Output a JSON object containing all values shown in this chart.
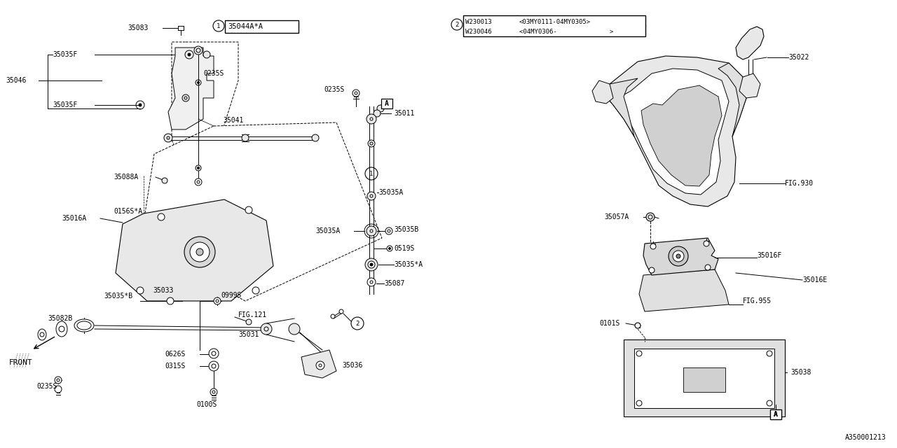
{
  "bg_color": "#ffffff",
  "line_color": "#000000",
  "text_color": "#000000",
  "ref_code": "A350001213",
  "part1_label": "35044A*A",
  "part2_row1": "W230013",
  "part2_row1_range": "<03MY0111-04MY0305>",
  "part2_row2": "W230046",
  "part2_row2_range": "<04MY0306-              >",
  "lw": 0.7
}
